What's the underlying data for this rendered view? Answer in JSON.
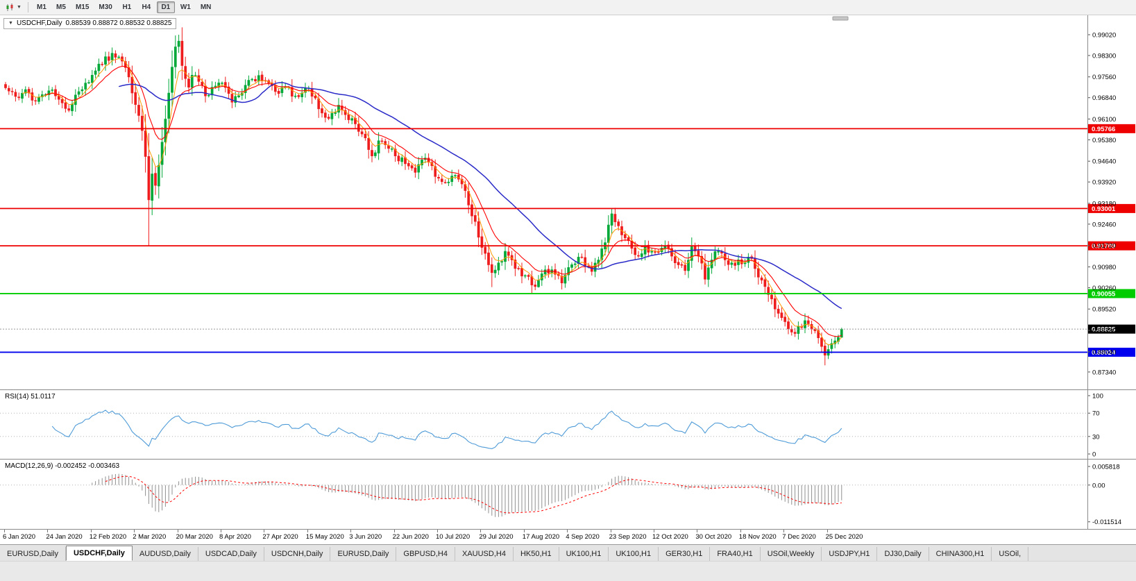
{
  "toolbar": {
    "timeframes": [
      {
        "label": "M1",
        "active": false
      },
      {
        "label": "M5",
        "active": false
      },
      {
        "label": "M15",
        "active": false
      },
      {
        "label": "M30",
        "active": false
      },
      {
        "label": "H1",
        "active": false
      },
      {
        "label": "H4",
        "active": false
      },
      {
        "label": "D1",
        "active": true
      },
      {
        "label": "W1",
        "active": false
      },
      {
        "label": "MN",
        "active": false
      }
    ]
  },
  "chart": {
    "title": "USDCHF,Daily",
    "ohlc": "0.88539 0.88872 0.88532 0.88825"
  },
  "chart_data": {
    "type": "candlestick",
    "symbol": "USDCHF",
    "timeframe": "Daily",
    "ohlc_display": {
      "open": "0.88539",
      "high": "0.88872",
      "low": "0.88532",
      "close": "0.88825"
    },
    "price_axis_ticks": [
      0.9902,
      0.983,
      0.9756,
      0.9684,
      0.961,
      0.9538,
      0.9464,
      0.9392,
      0.9318,
      0.9246,
      0.9172,
      0.9098,
      0.9026,
      0.8952,
      0.8878,
      0.8804,
      0.8734
    ],
    "x_axis_labels": [
      "6 Jan 2020",
      "24 Jan 2020",
      "12 Feb 2020",
      "2 Mar 2020",
      "20 Mar 2020",
      "8 Apr 2020",
      "27 Apr 2020",
      "15 May 2020",
      "3 Jun 2020",
      "22 Jun 2020",
      "10 Jul 2020",
      "29 Jul 2020",
      "17 Aug 2020",
      "4 Sep 2020",
      "23 Sep 2020",
      "12 Oct 2020",
      "30 Oct 2020",
      "18 Nov 2020",
      "7 Dec 2020",
      "25 Dec 2020"
    ],
    "bar_count": 252,
    "bars_per_label": 13,
    "noise": 0.0016,
    "close_anchors": [
      [
        0,
        0.9718
      ],
      [
        3,
        0.9688
      ],
      [
        6,
        0.9712
      ],
      [
        9,
        0.9672
      ],
      [
        13,
        0.9708
      ],
      [
        16,
        0.9678
      ],
      [
        19,
        0.964
      ],
      [
        22,
        0.9705
      ],
      [
        26,
        0.9762
      ],
      [
        29,
        0.98
      ],
      [
        32,
        0.9838
      ],
      [
        34,
        0.9825
      ],
      [
        36,
        0.9788
      ],
      [
        38,
        0.97
      ],
      [
        40,
        0.9622
      ],
      [
        41,
        0.957
      ],
      [
        42,
        0.948
      ],
      [
        43,
        0.933
      ],
      [
        44,
        0.942
      ],
      [
        45,
        0.938
      ],
      [
        46,
        0.945
      ],
      [
        47,
        0.953
      ],
      [
        48,
        0.961
      ],
      [
        49,
        0.97
      ],
      [
        50,
        0.979
      ],
      [
        51,
        0.986
      ],
      [
        52,
        0.988
      ],
      [
        53,
        0.9795
      ],
      [
        54,
        0.975
      ],
      [
        55,
        0.972
      ],
      [
        56,
        0.9762
      ],
      [
        58,
        0.974
      ],
      [
        60,
        0.969
      ],
      [
        62,
        0.972
      ],
      [
        65,
        0.9735
      ],
      [
        68,
        0.9668
      ],
      [
        71,
        0.97
      ],
      [
        74,
        0.9748
      ],
      [
        78,
        0.9742
      ],
      [
        81,
        0.9705
      ],
      [
        84,
        0.9722
      ],
      [
        87,
        0.969
      ],
      [
        91,
        0.9718
      ],
      [
        94,
        0.9645
      ],
      [
        97,
        0.9612
      ],
      [
        100,
        0.9658
      ],
      [
        102,
        0.9625
      ],
      [
        104,
        0.9612
      ],
      [
        107,
        0.9558
      ],
      [
        110,
        0.9482
      ],
      [
        112,
        0.9535
      ],
      [
        115,
        0.9508
      ],
      [
        117,
        0.9482
      ],
      [
        120,
        0.9455
      ],
      [
        123,
        0.9425
      ],
      [
        126,
        0.9475
      ],
      [
        128,
        0.9448
      ],
      [
        130,
        0.9405
      ],
      [
        133,
        0.9392
      ],
      [
        135,
        0.9415
      ],
      [
        137,
        0.9385
      ],
      [
        139,
        0.9312
      ],
      [
        141,
        0.9255
      ],
      [
        143,
        0.9165
      ],
      [
        145,
        0.9105
      ],
      [
        146,
        0.9078
      ],
      [
        148,
        0.9112
      ],
      [
        150,
        0.9152
      ],
      [
        152,
        0.9122
      ],
      [
        154,
        0.9092
      ],
      [
        156,
        0.9068
      ],
      [
        158,
        0.9035
      ],
      [
        160,
        0.9052
      ],
      [
        162,
        0.9088
      ],
      [
        165,
        0.9072
      ],
      [
        167,
        0.9042
      ],
      [
        169,
        0.9096
      ],
      [
        172,
        0.9132
      ],
      [
        174,
        0.9102
      ],
      [
        176,
        0.9082
      ],
      [
        178,
        0.9122
      ],
      [
        180,
        0.9182
      ],
      [
        182,
        0.9282
      ],
      [
        184,
        0.924
      ],
      [
        186,
        0.9198
      ],
      [
        188,
        0.9162
      ],
      [
        190,
        0.9135
      ],
      [
        192,
        0.9172
      ],
      [
        194,
        0.9152
      ],
      [
        196,
        0.9148
      ],
      [
        198,
        0.9172
      ],
      [
        200,
        0.9135
      ],
      [
        202,
        0.9105
      ],
      [
        204,
        0.9085
      ],
      [
        206,
        0.9168
      ],
      [
        208,
        0.9135
      ],
      [
        210,
        0.9055
      ],
      [
        212,
        0.9122
      ],
      [
        214,
        0.9152
      ],
      [
        216,
        0.9122
      ],
      [
        218,
        0.9112
      ],
      [
        221,
        0.9108
      ],
      [
        223,
        0.9132
      ],
      [
        225,
        0.9092
      ],
      [
        227,
        0.9052
      ],
      [
        229,
        0.9002
      ],
      [
        231,
        0.8952
      ],
      [
        233,
        0.8922
      ],
      [
        234,
        0.8908
      ],
      [
        236,
        0.8872
      ],
      [
        238,
        0.8892
      ],
      [
        240,
        0.8912
      ],
      [
        242,
        0.8882
      ],
      [
        244,
        0.8852
      ],
      [
        245,
        0.8822
      ],
      [
        246,
        0.8792
      ],
      [
        247,
        0.8812
      ],
      [
        249,
        0.8842
      ],
      [
        250,
        0.8854
      ],
      [
        251,
        0.88825
      ]
    ],
    "bar_overrides": [
      {
        "i": 33,
        "h": 0.9848
      },
      {
        "i": 43,
        "l": 0.917
      },
      {
        "i": 52,
        "h": 0.9902
      },
      {
        "i": 146,
        "l": 0.9028
      },
      {
        "i": 160,
        "l": 0.9026
      },
      {
        "i": 182,
        "h": 0.93
      },
      {
        "i": 210,
        "l": 0.9037
      },
      {
        "i": 246,
        "l": 0.8757
      },
      {
        "i": 251,
        "o": 0.88539,
        "h": 0.88872,
        "l": 0.88532,
        "c": 0.88825
      }
    ],
    "horizontal_lines": [
      {
        "price": 0.95766,
        "label": "0.95766",
        "color": "#ee0000",
        "kind": "resistance"
      },
      {
        "price": 0.93001,
        "label": "0.93001",
        "color": "#ee0000",
        "kind": "resistance"
      },
      {
        "price": 0.91709,
        "label": "0.91709",
        "color": "#ee0000",
        "kind": "resistance"
      },
      {
        "price": 0.90055,
        "label": "0.90055",
        "color": "#00cc00",
        "kind": "support"
      },
      {
        "price": 0.88024,
        "label": "0.88024",
        "color": "#0000ee",
        "kind": "support"
      }
    ],
    "current_price": {
      "value": 0.88825,
      "label": "0.88825"
    },
    "moving_averages": [
      {
        "type": "ema",
        "period": 5,
        "color": "#ff9900",
        "width": 1
      },
      {
        "type": "ema",
        "period": 12,
        "color": "#ff0000",
        "width": 1.1
      },
      {
        "type": "sma",
        "period": 34,
        "color": "#2a2ac8",
        "width": 1.5
      }
    ],
    "indicators": {
      "rsi": {
        "label": "RSI(14)",
        "value": "51.0117",
        "axis_levels": [
          100,
          70,
          30,
          0
        ],
        "guide_levels": [
          70,
          30
        ],
        "color": "#4f9bd8"
      },
      "macd": {
        "label": "MACD(12,26,9)",
        "value_main": "-0.002452",
        "value_signal": "-0.003463",
        "axis": [
          {
            "v": 0.005818,
            "label": "0.005818"
          },
          {
            "v": 0,
            "label": "0.00"
          },
          {
            "v": -0.011514,
            "label": "-0.011514"
          }
        ],
        "histogram_color": "#8f8f8f",
        "signal_color": "#ff0000"
      }
    },
    "colors": {
      "up": "#00a838",
      "down": "#ee1c1c",
      "background": "#ffffff",
      "axis_text": "#000000"
    }
  },
  "tabs": {
    "items": [
      {
        "label": "EURUSD,Daily",
        "active": false
      },
      {
        "label": "USDCHF,Daily",
        "active": true
      },
      {
        "label": "AUDUSD,Daily",
        "active": false
      },
      {
        "label": "USDCAD,Daily",
        "active": false
      },
      {
        "label": "USDCNH,Daily",
        "active": false
      },
      {
        "label": "EURUSD,Daily",
        "active": false
      },
      {
        "label": "GBPUSD,H4",
        "active": false
      },
      {
        "label": "XAUUSD,H4",
        "active": false
      },
      {
        "label": "HK50,H1",
        "active": false
      },
      {
        "label": "UK100,H1",
        "active": false
      },
      {
        "label": "UK100,H1",
        "active": false
      },
      {
        "label": "GER30,H1",
        "active": false
      },
      {
        "label": "FRA40,H1",
        "active": false
      },
      {
        "label": "USOil,Weekly",
        "active": false
      },
      {
        "label": "USDJPY,H1",
        "active": false
      },
      {
        "label": "DJ30,Daily",
        "active": false
      },
      {
        "label": "CHINA300,H1",
        "active": false
      },
      {
        "label": "USOil,",
        "active": false
      }
    ]
  }
}
